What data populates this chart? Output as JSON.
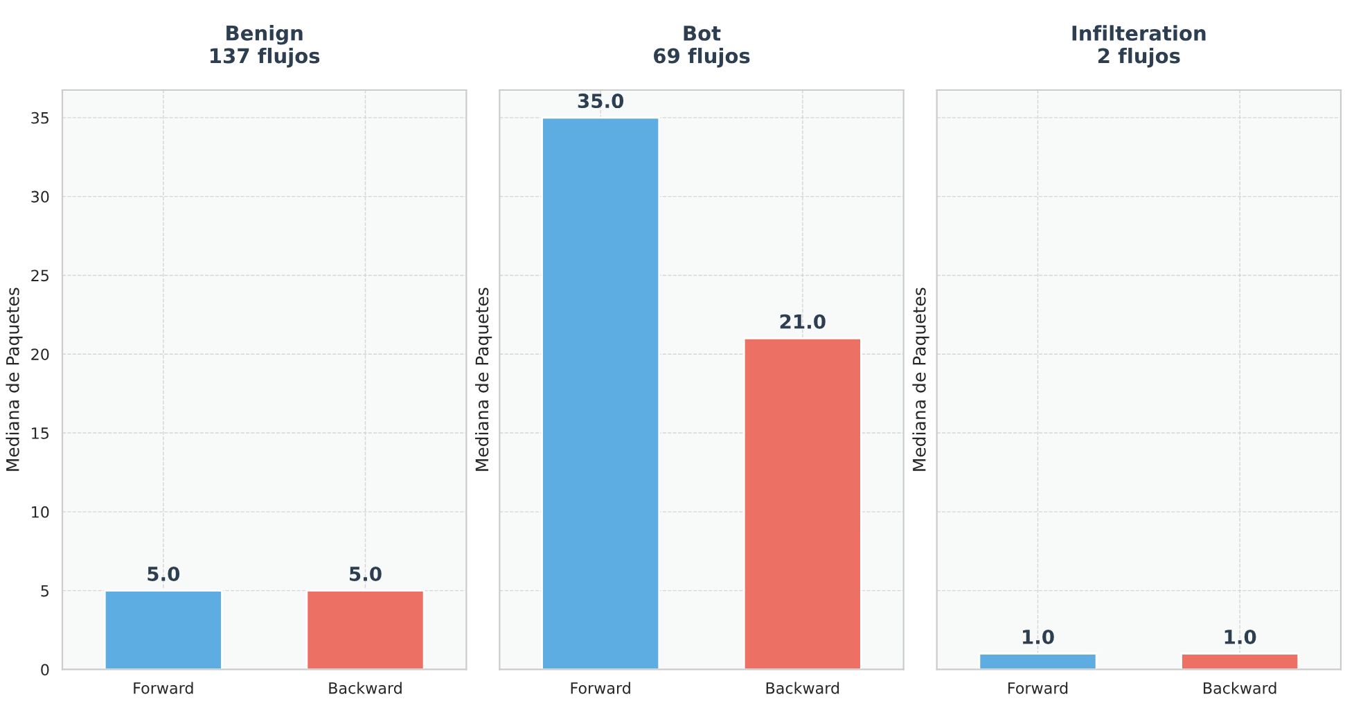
{
  "chart_data": [
    {
      "type": "bar",
      "title": "Benign\n137 flujos",
      "ylabel": "Mediana de Paquetes",
      "categories": [
        "Forward",
        "Backward"
      ],
      "values": [
        5.0,
        5.0
      ],
      "colors": [
        "#5dade2",
        "#ec7063"
      ],
      "value_labels": [
        "5.0",
        "5.0"
      ],
      "ylim": [
        0,
        36.75
      ],
      "yticks": [
        0,
        5,
        10,
        15,
        20,
        25,
        30,
        35
      ],
      "grid": true
    },
    {
      "type": "bar",
      "title": "Bot\n69 flujos",
      "ylabel": "Mediana de Paquetes",
      "categories": [
        "Forward",
        "Backward"
      ],
      "values": [
        35.0,
        21.0
      ],
      "colors": [
        "#5dade2",
        "#ec7063"
      ],
      "value_labels": [
        "35.0",
        "21.0"
      ],
      "ylim": [
        0,
        36.75
      ],
      "yticks": [
        0,
        5,
        10,
        15,
        20,
        25,
        30,
        35
      ],
      "grid": true,
      "tick_labels": "x"
    },
    {
      "type": "bar",
      "title": "Infilteration\n2 flujos",
      "ylabel": "Mediana de Paquetes",
      "categories": [
        "Forward",
        "Backward"
      ],
      "values": [
        1.0,
        1.0
      ],
      "colors": [
        "#5dade2",
        "#ec7063"
      ],
      "value_labels": [
        "1.0",
        "1.0"
      ],
      "ylim": [
        0,
        36.75
      ],
      "yticks": [
        0,
        5,
        10,
        15,
        20,
        25,
        30,
        35
      ],
      "grid": true,
      "tick_labels": "x"
    }
  ]
}
